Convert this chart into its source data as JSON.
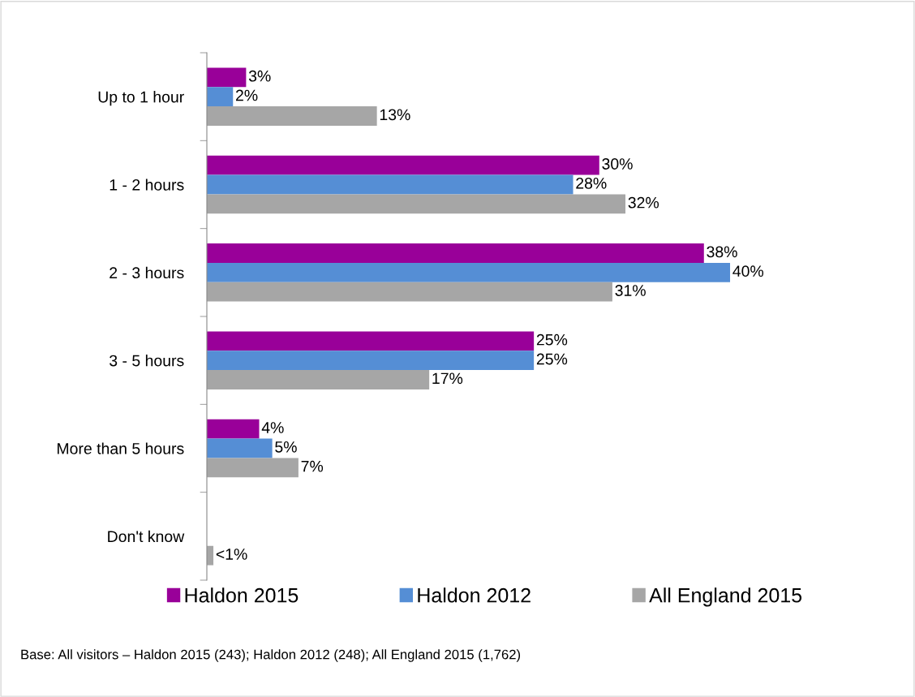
{
  "chart_data": {
    "type": "bar",
    "orientation": "horizontal",
    "categories": [
      "Up to 1 hour",
      "1 - 2 hours",
      "2 - 3 hours",
      "3 - 5 hours",
      "More than 5 hours",
      "Don't know"
    ],
    "series": [
      {
        "name": "Haldon 2015",
        "color": "#990099",
        "values": [
          3,
          30,
          38,
          25,
          4,
          null
        ],
        "value_labels": [
          "3%",
          "30%",
          "38%",
          "25%",
          "4%",
          null
        ]
      },
      {
        "name": "Haldon 2012",
        "color": "#558ed5",
        "values": [
          2,
          28,
          40,
          25,
          5,
          null
        ],
        "value_labels": [
          "2%",
          "28%",
          "40%",
          "25%",
          "5%",
          null
        ]
      },
      {
        "name": "All England 2015",
        "color": "#a6a6a6",
        "values": [
          13,
          32,
          31,
          17,
          7,
          0.5
        ],
        "value_labels": [
          "13%",
          "32%",
          "31%",
          "17%",
          "7%",
          "<1%"
        ]
      }
    ],
    "grid": false,
    "legend": "bottom",
    "annotations": [
      "Base: All visitors – Haldon 2015 (243); Haldon 2012 (248); All England 2015 (1,762)"
    ]
  }
}
